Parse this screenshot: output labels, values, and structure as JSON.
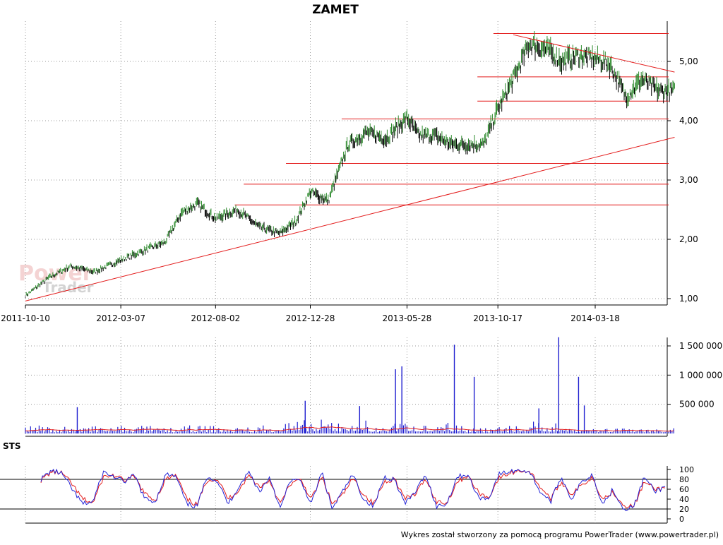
{
  "title": "ZAMET",
  "footer": "Wykres został stworzony za pomocą programu PowerTrader (www.powertrader.pl)",
  "watermark": {
    "line1": "Power",
    "line2": "Trader"
  },
  "colors": {
    "price": "#000000",
    "price_up": "#2e8b2e",
    "trendline": "#e31b1b",
    "volume": "#1f1fd0",
    "volume_avg": "#e31b1b",
    "sts_k": "#2323d6",
    "sts_d": "#e31b1b",
    "grid": "#9a9a9a"
  },
  "chart_data": [
    {
      "type": "line",
      "name": "price",
      "title": "ZAMET",
      "x_ticks": [
        "2011-10-10",
        "2012-03-07",
        "2012-08-02",
        "2012-12-28",
        "2013-05-28",
        "2013-10-17",
        "2014-03-18"
      ],
      "y_ticks": [
        "1,00",
        "2,00",
        "3,00",
        "4,00",
        "5,00"
      ],
      "ylim": [
        1.0,
        5.5
      ],
      "grid": true,
      "x": [
        "2011-10-10",
        "2011-11-15",
        "2011-12-20",
        "2012-01-25",
        "2012-03-07",
        "2012-04-10",
        "2012-05-15",
        "2012-06-10",
        "2012-07-05",
        "2012-08-02",
        "2012-09-05",
        "2012-10-10",
        "2012-11-10",
        "2012-12-05",
        "2012-12-28",
        "2013-01-25",
        "2013-02-25",
        "2013-03-25",
        "2013-04-25",
        "2013-05-28",
        "2013-06-15",
        "2013-07-10",
        "2013-08-05",
        "2013-09-01",
        "2013-09-25",
        "2013-10-17",
        "2013-11-10",
        "2013-12-05",
        "2014-01-01",
        "2014-01-25",
        "2014-02-20",
        "2014-03-18",
        "2014-04-10",
        "2014-05-05",
        "2014-05-30",
        "2014-06-25",
        "2014-07-20"
      ],
      "close": [
        1.05,
        1.35,
        1.55,
        1.45,
        1.65,
        1.8,
        1.95,
        2.45,
        2.6,
        2.35,
        2.5,
        2.2,
        2.1,
        2.3,
        2.8,
        2.65,
        3.6,
        3.8,
        3.7,
        4.05,
        3.75,
        3.75,
        3.6,
        3.6,
        3.6,
        4.2,
        4.7,
        5.3,
        5.2,
        5.0,
        5.1,
        5.05,
        4.95,
        4.4,
        4.7,
        4.5,
        4.5
      ],
      "resistance_levels": [
        5.47,
        4.74,
        4.33,
        4.03,
        3.28,
        2.93,
        2.58
      ],
      "trendline_up": [
        {
          "x": "2011-10-10",
          "y": 0.96
        },
        {
          "x": "2014-07-20",
          "y": 3.72
        }
      ],
      "trendline_down": [
        {
          "x": "2013-11-10",
          "y": 5.45
        },
        {
          "x": "2014-07-20",
          "y": 4.82
        }
      ]
    },
    {
      "type": "bar",
      "name": "volume",
      "y_ticks": [
        "500 000",
        "1 000 000",
        "1 500 000"
      ],
      "ylim": [
        0,
        1700000
      ],
      "grid": true,
      "spikes": [
        {
          "x": "2011-12-30",
          "value": 450000
        },
        {
          "x": "2012-12-20",
          "value": 560000
        },
        {
          "x": "2013-03-15",
          "value": 470000
        },
        {
          "x": "2013-05-10",
          "value": 1100000
        },
        {
          "x": "2013-05-20",
          "value": 1150000
        },
        {
          "x": "2013-08-10",
          "value": 1520000
        },
        {
          "x": "2013-09-10",
          "value": 970000
        },
        {
          "x": "2013-12-20",
          "value": 430000
        },
        {
          "x": "2014-01-20",
          "value": 1650000
        },
        {
          "x": "2014-02-20",
          "value": 970000
        },
        {
          "x": "2014-03-01",
          "value": 480000
        }
      ]
    },
    {
      "type": "line",
      "name": "STS",
      "title": "STS",
      "y_ticks": [
        "0",
        "20",
        "40",
        "60",
        "80",
        "100"
      ],
      "ylim": [
        0,
        100
      ],
      "reference_lines": [
        20,
        80
      ],
      "grid": true,
      "k": [
        80,
        98,
        92,
        60,
        30,
        35,
        95,
        85,
        75,
        88,
        40,
        35,
        90,
        85,
        30,
        25,
        88,
        75,
        30,
        65,
        95,
        55,
        85,
        20,
        80,
        75,
        30,
        95,
        20,
        55,
        90,
        40,
        25,
        85,
        80,
        30,
        55,
        90,
        25,
        30,
        85,
        90,
        45,
        40,
        90,
        95,
        100,
        95,
        55,
        35,
        85,
        40,
        75,
        90,
        30,
        60,
        20,
        25,
        85,
        55,
        65
      ],
      "d": [
        78,
        95,
        93,
        70,
        40,
        32,
        85,
        88,
        78,
        85,
        50,
        38,
        80,
        88,
        40,
        28,
        80,
        80,
        40,
        58,
        88,
        65,
        78,
        30,
        72,
        78,
        40,
        85,
        30,
        48,
        82,
        50,
        30,
        75,
        82,
        40,
        50,
        82,
        35,
        32,
        75,
        88,
        55,
        42,
        82,
        92,
        98,
        96,
        65,
        40,
        75,
        50,
        68,
        85,
        40,
        55,
        28,
        25,
        75,
        60,
        62
      ]
    }
  ]
}
